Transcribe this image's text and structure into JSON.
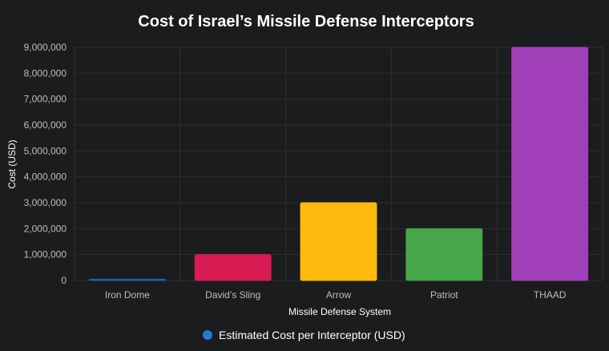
{
  "chart_data": {
    "type": "bar",
    "title": "Cost of Israel’s Missile Defense Interceptors",
    "xlabel": "Missile Defense System",
    "ylabel": "Cost (USD)",
    "categories": [
      "Iron Dome",
      "David’s Sling",
      "Arrow",
      "Patriot",
      "THAAD"
    ],
    "series": [
      {
        "name": "Estimated Cost per Interceptor (USD)",
        "values": [
          50000,
          1000000,
          3000000,
          2000000,
          9000000
        ],
        "colors": [
          "#1f5fae",
          "#d81b52",
          "#ffbb0d",
          "#46a64a",
          "#a03fb8"
        ]
      }
    ],
    "yticks": [
      "0",
      "1,000,000",
      "2,000,000",
      "3,000,000",
      "4,000,000",
      "5,000,000",
      "6,000,000",
      "7,000,000",
      "8,000,000",
      "9,000,000"
    ],
    "ylim": [
      0,
      9000000
    ],
    "grid": true,
    "legend": {
      "position": "bottom",
      "marker_color": "#2979d8"
    }
  }
}
